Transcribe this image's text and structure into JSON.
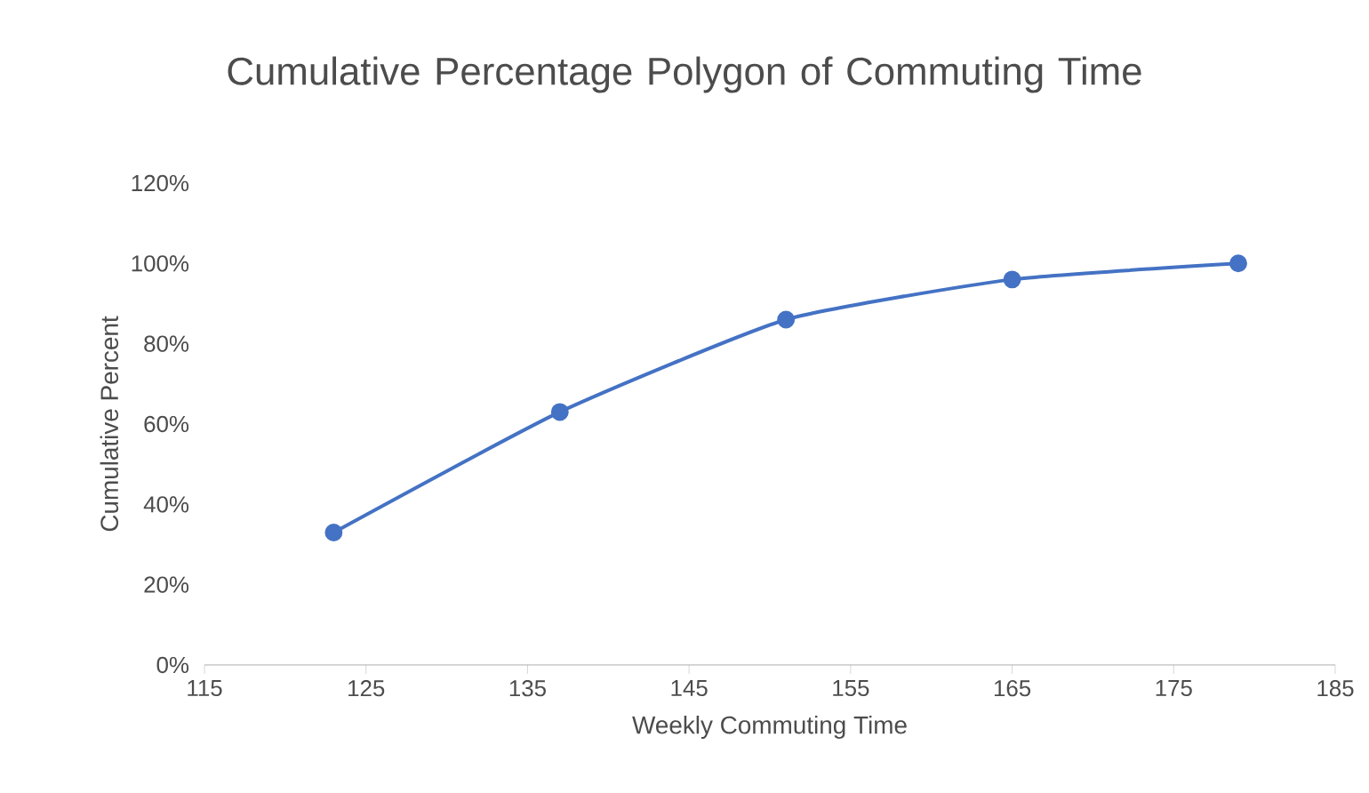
{
  "chart_data": {
    "type": "line",
    "title": "Cumulative Percentage Polygon of Commuting Time",
    "xlabel": "Weekly Commuting Time",
    "ylabel": "Cumulative Percent",
    "x": [
      123,
      137,
      151,
      165,
      179
    ],
    "series": [
      {
        "color": "#4472c4",
        "values": [
          33,
          63,
          86,
          96,
          100
        ]
      }
    ],
    "xlim": [
      115,
      185
    ],
    "xticks": [
      115,
      125,
      135,
      145,
      155,
      165,
      175,
      185
    ],
    "ylim": [
      0,
      120
    ],
    "yticks": [
      {
        "value": 0,
        "label": "0%"
      },
      {
        "value": 20,
        "label": "20%"
      },
      {
        "value": 40,
        "label": "40%"
      },
      {
        "value": 60,
        "label": "60%"
      },
      {
        "value": 80,
        "label": "80%"
      },
      {
        "value": 100,
        "label": "100%"
      },
      {
        "value": 120,
        "label": "120%"
      }
    ],
    "marker": "circle"
  }
}
